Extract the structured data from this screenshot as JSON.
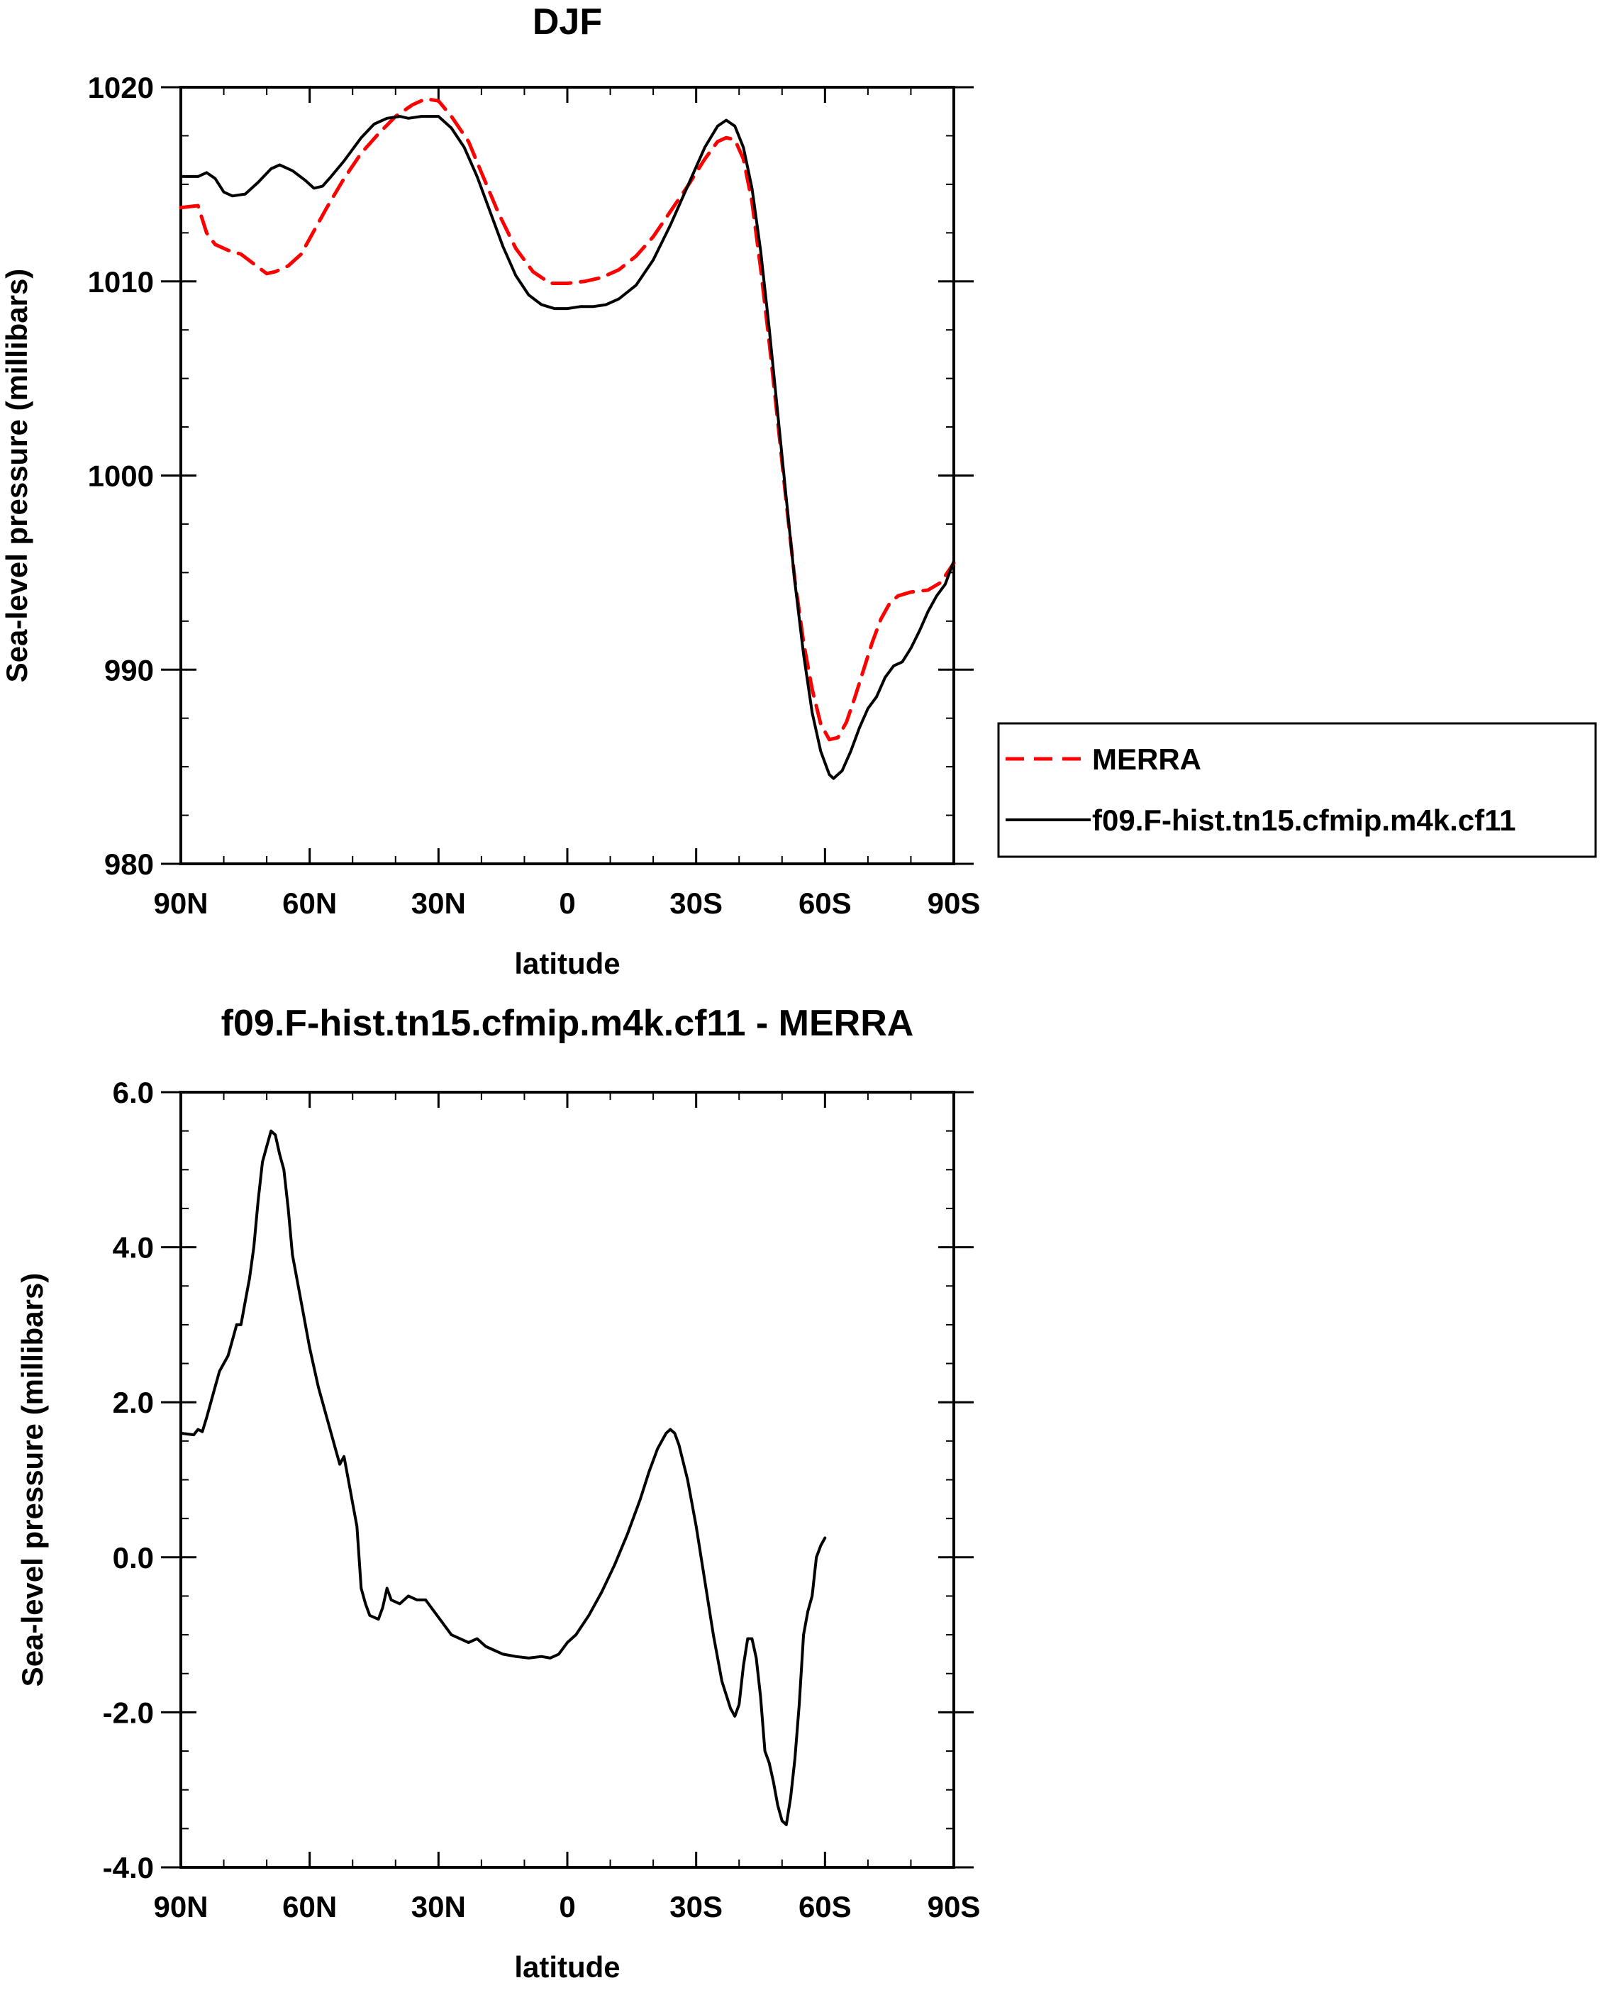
{
  "chart_data": [
    {
      "type": "line",
      "title": "DJF",
      "xlabel": "latitude",
      "ylabel": "Sea-level pressure (millibars)",
      "xlim": [
        90,
        -90
      ],
      "ylim": [
        980,
        1020
      ],
      "x_ticks": [
        {
          "value": 90,
          "label": "90N"
        },
        {
          "value": 60,
          "label": "60N"
        },
        {
          "value": 30,
          "label": "30N"
        },
        {
          "value": 0,
          "label": "0"
        },
        {
          "value": -30,
          "label": "30S"
        },
        {
          "value": -60,
          "label": "60S"
        },
        {
          "value": -90,
          "label": "90S"
        }
      ],
      "y_ticks": [
        {
          "value": 1020,
          "label": "1020"
        },
        {
          "value": 1010,
          "label": "1010"
        },
        {
          "value": 1000,
          "label": "1000"
        },
        {
          "value": 990,
          "label": "990"
        },
        {
          "value": 980,
          "label": "980"
        }
      ],
      "legend": {
        "placement": "right"
      },
      "series": [
        {
          "name": "MERRA",
          "color": "#ff0000",
          "dash": true,
          "points": [
            [
              90,
              1013.8
            ],
            [
              86,
              1013.9
            ],
            [
              84,
              1012.5
            ],
            [
              82,
              1011.9
            ],
            [
              79,
              1011.6
            ],
            [
              76,
              1011.4
            ],
            [
              73,
              1010.9
            ],
            [
              70,
              1010.4
            ],
            [
              68,
              1010.5
            ],
            [
              65,
              1010.8
            ],
            [
              62,
              1011.4
            ],
            [
              59,
              1012.6
            ],
            [
              56,
              1013.8
            ],
            [
              52,
              1015.3
            ],
            [
              48,
              1016.6
            ],
            [
              44,
              1017.6
            ],
            [
              40,
              1018.5
            ],
            [
              36,
              1019.1
            ],
            [
              33,
              1019.4
            ],
            [
              30,
              1019.3
            ],
            [
              27,
              1018.5
            ],
            [
              23,
              1017.2
            ],
            [
              20,
              1015.6
            ],
            [
              16,
              1013.5
            ],
            [
              12,
              1011.7
            ],
            [
              8,
              1010.5
            ],
            [
              4,
              1009.9
            ],
            [
              0,
              1009.9
            ],
            [
              -4,
              1010.0
            ],
            [
              -8,
              1010.2
            ],
            [
              -12,
              1010.6
            ],
            [
              -16,
              1011.3
            ],
            [
              -20,
              1012.3
            ],
            [
              -24,
              1013.6
            ],
            [
              -28,
              1014.9
            ],
            [
              -32,
              1016.3
            ],
            [
              -35,
              1017.2
            ],
            [
              -37,
              1017.4
            ],
            [
              -39,
              1017.3
            ],
            [
              -41,
              1016.3
            ],
            [
              -43,
              1014.1
            ],
            [
              -45,
              1010.7
            ],
            [
              -47,
              1006.9
            ],
            [
              -49,
              1002.8
            ],
            [
              -51,
              998.6
            ],
            [
              -53,
              994.6
            ],
            [
              -55,
              991.4
            ],
            [
              -57,
              989.0
            ],
            [
              -59,
              987.2
            ],
            [
              -61,
              986.4
            ],
            [
              -63,
              986.5
            ],
            [
              -65,
              987.3
            ],
            [
              -67,
              988.6
            ],
            [
              -69,
              990.0
            ],
            [
              -71,
              991.4
            ],
            [
              -73,
              992.6
            ],
            [
              -75,
              993.4
            ],
            [
              -77,
              993.8
            ],
            [
              -80,
              994.0
            ],
            [
              -84,
              994.1
            ],
            [
              -87,
              994.5
            ],
            [
              -90,
              995.5
            ]
          ]
        },
        {
          "name": "f09.F-hist.tn15.cfmip.m4k.cf11",
          "color": "#000000",
          "dash": false,
          "points": [
            [
              90,
              1015.4
            ],
            [
              86,
              1015.4
            ],
            [
              84,
              1015.6
            ],
            [
              82,
              1015.3
            ],
            [
              80,
              1014.6
            ],
            [
              78,
              1014.4
            ],
            [
              75,
              1014.5
            ],
            [
              72,
              1015.1
            ],
            [
              69,
              1015.8
            ],
            [
              67,
              1016.0
            ],
            [
              64,
              1015.7
            ],
            [
              61,
              1015.2
            ],
            [
              59,
              1014.8
            ],
            [
              57,
              1014.9
            ],
            [
              55,
              1015.4
            ],
            [
              52,
              1016.2
            ],
            [
              48,
              1017.4
            ],
            [
              45,
              1018.1
            ],
            [
              42,
              1018.4
            ],
            [
              39,
              1018.5
            ],
            [
              37,
              1018.4
            ],
            [
              34,
              1018.5
            ],
            [
              30,
              1018.5
            ],
            [
              27,
              1017.9
            ],
            [
              24,
              1016.9
            ],
            [
              21,
              1015.4
            ],
            [
              18,
              1013.6
            ],
            [
              15,
              1011.8
            ],
            [
              12,
              1010.3
            ],
            [
              9,
              1009.3
            ],
            [
              6,
              1008.8
            ],
            [
              3,
              1008.6
            ],
            [
              0,
              1008.6
            ],
            [
              -3,
              1008.7
            ],
            [
              -6,
              1008.7
            ],
            [
              -9,
              1008.8
            ],
            [
              -12,
              1009.1
            ],
            [
              -16,
              1009.8
            ],
            [
              -20,
              1011.1
            ],
            [
              -24,
              1012.9
            ],
            [
              -28,
              1014.9
            ],
            [
              -32,
              1016.9
            ],
            [
              -35,
              1018.0
            ],
            [
              -37,
              1018.3
            ],
            [
              -39,
              1018.0
            ],
            [
              -41,
              1016.9
            ],
            [
              -43,
              1014.8
            ],
            [
              -45,
              1011.6
            ],
            [
              -47,
              1007.6
            ],
            [
              -49,
              1003.2
            ],
            [
              -51,
              998.8
            ],
            [
              -53,
              994.5
            ],
            [
              -55,
              990.8
            ],
            [
              -57,
              987.8
            ],
            [
              -59,
              985.8
            ],
            [
              -61,
              984.6
            ],
            [
              -62,
              984.4
            ],
            [
              -64,
              984.8
            ],
            [
              -66,
              985.8
            ],
            [
              -68,
              987.0
            ],
            [
              -70,
              988.0
            ],
            [
              -72,
              988.6
            ],
            [
              -74,
              989.6
            ],
            [
              -76,
              990.2
            ],
            [
              -78,
              990.4
            ],
            [
              -80,
              991.1
            ],
            [
              -82,
              992.0
            ],
            [
              -84,
              993.0
            ],
            [
              -86,
              993.8
            ],
            [
              -88,
              994.4
            ],
            [
              -90,
              995.6
            ]
          ]
        }
      ]
    },
    {
      "type": "line",
      "title": "f09.F-hist.tn15.cfmip.m4k.cf11 - MERRA",
      "xlabel": "latitude",
      "ylabel": "Sea-level pressure (millibars)",
      "xlim": [
        90,
        -90
      ],
      "ylim": [
        -4.0,
        6.0
      ],
      "x_ticks": [
        {
          "value": 90,
          "label": "90N"
        },
        {
          "value": 60,
          "label": "60N"
        },
        {
          "value": 30,
          "label": "30N"
        },
        {
          "value": 0,
          "label": "0"
        },
        {
          "value": -30,
          "label": "30S"
        },
        {
          "value": -60,
          "label": "60S"
        },
        {
          "value": -90,
          "label": "90S"
        }
      ],
      "y_ticks": [
        {
          "value": 6.0,
          "label": "6.0"
        },
        {
          "value": 4.0,
          "label": "4.0"
        },
        {
          "value": 2.0,
          "label": "2.0"
        },
        {
          "value": 0.0,
          "label": "0.0"
        },
        {
          "value": -2.0,
          "label": "-2.0"
        },
        {
          "value": -4.0,
          "label": "-4.0"
        }
      ],
      "series": [
        {
          "color": "#000000",
          "dash": false,
          "points": [
            [
              90,
              1.6
            ],
            [
              87,
              1.58
            ],
            [
              86,
              1.65
            ],
            [
              85,
              1.62
            ],
            [
              84,
              1.8
            ],
            [
              82,
              2.2
            ],
            [
              81,
              2.4
            ],
            [
              79,
              2.6
            ],
            [
              78,
              2.8
            ],
            [
              77,
              3.0
            ],
            [
              76,
              3.0
            ],
            [
              75,
              3.3
            ],
            [
              74,
              3.6
            ],
            [
              73,
              4.0
            ],
            [
              72,
              4.6
            ],
            [
              71,
              5.1
            ],
            [
              70,
              5.3
            ],
            [
              69,
              5.5
            ],
            [
              68,
              5.45
            ],
            [
              67,
              5.2
            ],
            [
              66,
              5.0
            ],
            [
              65,
              4.5
            ],
            [
              64,
              3.9
            ],
            [
              62,
              3.3
            ],
            [
              60,
              2.7
            ],
            [
              58,
              2.2
            ],
            [
              56,
              1.8
            ],
            [
              54,
              1.4
            ],
            [
              53,
              1.2
            ],
            [
              52,
              1.3
            ],
            [
              51,
              1.0
            ],
            [
              50,
              0.7
            ],
            [
              49,
              0.4
            ],
            [
              48,
              -0.4
            ],
            [
              47,
              -0.6
            ],
            [
              46,
              -0.75
            ],
            [
              44,
              -0.8
            ],
            [
              43,
              -0.65
            ],
            [
              42,
              -0.4
            ],
            [
              41,
              -0.55
            ],
            [
              39,
              -0.6
            ],
            [
              37,
              -0.5
            ],
            [
              35,
              -0.55
            ],
            [
              33,
              -0.55
            ],
            [
              31,
              -0.7
            ],
            [
              29,
              -0.85
            ],
            [
              27,
              -1.0
            ],
            [
              25,
              -1.05
            ],
            [
              23,
              -1.1
            ],
            [
              21,
              -1.05
            ],
            [
              19,
              -1.15
            ],
            [
              17,
              -1.2
            ],
            [
              15,
              -1.25
            ],
            [
              12,
              -1.28
            ],
            [
              9,
              -1.3
            ],
            [
              6,
              -1.28
            ],
            [
              4,
              -1.3
            ],
            [
              2,
              -1.25
            ],
            [
              0,
              -1.1
            ],
            [
              -2,
              -1.0
            ],
            [
              -5,
              -0.75
            ],
            [
              -8,
              -0.45
            ],
            [
              -11,
              -0.1
            ],
            [
              -14,
              0.3
            ],
            [
              -17,
              0.75
            ],
            [
              -19,
              1.1
            ],
            [
              -21,
              1.4
            ],
            [
              -23,
              1.6
            ],
            [
              -24,
              1.65
            ],
            [
              -25,
              1.6
            ],
            [
              -26,
              1.45
            ],
            [
              -28,
              1.0
            ],
            [
              -30,
              0.4
            ],
            [
              -32,
              -0.3
            ],
            [
              -34,
              -1.0
            ],
            [
              -36,
              -1.6
            ],
            [
              -38,
              -1.95
            ],
            [
              -39,
              -2.05
            ],
            [
              -40,
              -1.9
            ],
            [
              -41,
              -1.4
            ],
            [
              -42,
              -1.05
            ],
            [
              -43,
              -1.05
            ],
            [
              -44,
              -1.3
            ],
            [
              -45,
              -1.8
            ],
            [
              -46,
              -2.5
            ],
            [
              -47,
              -2.65
            ],
            [
              -48,
              -2.9
            ],
            [
              -49,
              -3.2
            ],
            [
              -50,
              -3.4
            ],
            [
              -51,
              -3.45
            ],
            [
              -52,
              -3.1
            ],
            [
              -53,
              -2.6
            ],
            [
              -54,
              -1.9
            ],
            [
              -55,
              -1.0
            ],
            [
              -56,
              -0.7
            ],
            [
              -57,
              -0.5
            ],
            [
              -58,
              0.0
            ],
            [
              -59,
              0.15
            ],
            [
              -60,
              0.25
            ]
          ]
        }
      ]
    }
  ]
}
